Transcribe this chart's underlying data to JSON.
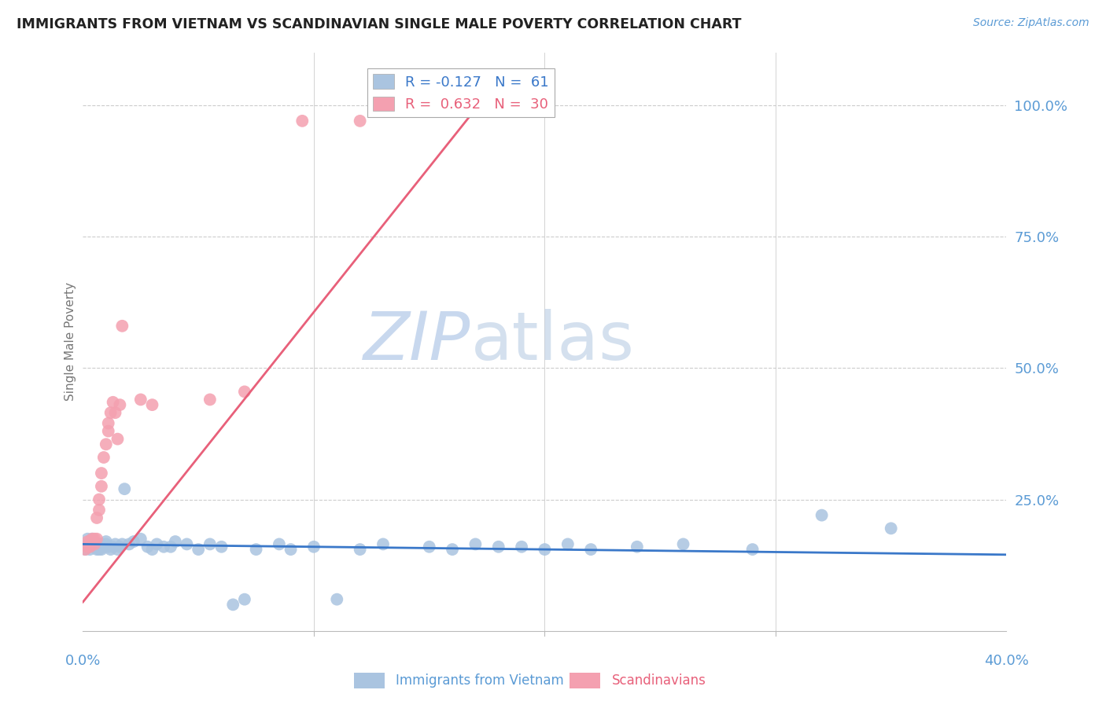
{
  "title": "IMMIGRANTS FROM VIETNAM VS SCANDINAVIAN SINGLE MALE POVERTY CORRELATION CHART",
  "source": "Source: ZipAtlas.com",
  "ylabel": "Single Male Poverty",
  "y_ticks_right": [
    "100.0%",
    "75.0%",
    "50.0%",
    "25.0%"
  ],
  "y_ticks_right_vals": [
    1.0,
    0.75,
    0.5,
    0.25
  ],
  "xlim": [
    0.0,
    0.4
  ],
  "ylim": [
    0.0,
    1.1
  ],
  "legend_R_vn": "-0.127",
  "legend_N_vn": "61",
  "legend_R_sc": "0.632",
  "legend_N_sc": "30",
  "series_vietnam": {
    "color": "#aac4e0",
    "line_color": "#3a78c9",
    "x": [
      0.001,
      0.002,
      0.002,
      0.003,
      0.003,
      0.004,
      0.004,
      0.005,
      0.005,
      0.006,
      0.006,
      0.007,
      0.007,
      0.008,
      0.008,
      0.009,
      0.01,
      0.01,
      0.011,
      0.012,
      0.013,
      0.014,
      0.015,
      0.016,
      0.017,
      0.018,
      0.02,
      0.022,
      0.025,
      0.028,
      0.03,
      0.032,
      0.035,
      0.038,
      0.04,
      0.045,
      0.05,
      0.055,
      0.06,
      0.065,
      0.07,
      0.075,
      0.085,
      0.09,
      0.1,
      0.11,
      0.12,
      0.13,
      0.15,
      0.16,
      0.17,
      0.18,
      0.19,
      0.2,
      0.21,
      0.22,
      0.24,
      0.26,
      0.29,
      0.32,
      0.35
    ],
    "y": [
      0.155,
      0.165,
      0.175,
      0.155,
      0.17,
      0.165,
      0.175,
      0.16,
      0.17,
      0.155,
      0.165,
      0.16,
      0.155,
      0.165,
      0.155,
      0.16,
      0.165,
      0.17,
      0.16,
      0.155,
      0.16,
      0.165,
      0.155,
      0.16,
      0.165,
      0.27,
      0.165,
      0.17,
      0.175,
      0.16,
      0.155,
      0.165,
      0.16,
      0.16,
      0.17,
      0.165,
      0.155,
      0.165,
      0.16,
      0.05,
      0.06,
      0.155,
      0.165,
      0.155,
      0.16,
      0.06,
      0.155,
      0.165,
      0.16,
      0.155,
      0.165,
      0.16,
      0.16,
      0.155,
      0.165,
      0.155,
      0.16,
      0.165,
      0.155,
      0.22,
      0.195
    ]
  },
  "series_scandinavian": {
    "color": "#f4a0b0",
    "line_color": "#e8607a",
    "x": [
      0.001,
      0.002,
      0.002,
      0.003,
      0.003,
      0.004,
      0.005,
      0.005,
      0.006,
      0.006,
      0.007,
      0.007,
      0.008,
      0.008,
      0.009,
      0.01,
      0.011,
      0.011,
      0.012,
      0.013,
      0.014,
      0.015,
      0.016,
      0.017,
      0.025,
      0.03,
      0.055,
      0.07,
      0.095,
      0.12
    ],
    "y": [
      0.155,
      0.16,
      0.17,
      0.16,
      0.17,
      0.175,
      0.165,
      0.175,
      0.175,
      0.215,
      0.23,
      0.25,
      0.275,
      0.3,
      0.33,
      0.355,
      0.38,
      0.395,
      0.415,
      0.435,
      0.415,
      0.365,
      0.43,
      0.58,
      0.44,
      0.43,
      0.44,
      0.455,
      0.97,
      0.97
    ]
  },
  "sc_regline_x": [
    0.0,
    0.175
  ],
  "sc_regline_y": [
    0.055,
    1.02
  ],
  "vn_regline_x": [
    0.0,
    0.4
  ],
  "vn_regline_y": [
    0.165,
    0.145
  ],
  "watermark_zip": "ZIP",
  "watermark_atlas": "atlas",
  "watermark_color": "#c8d8ee",
  "background_color": "#ffffff",
  "title_color": "#222222",
  "axis_label_color": "#777777",
  "right_axis_color": "#5b9bd5",
  "grid_color": "#cccccc",
  "legend_label_vn": "Immigrants from Vietnam",
  "legend_label_sc": "Scandinavians"
}
